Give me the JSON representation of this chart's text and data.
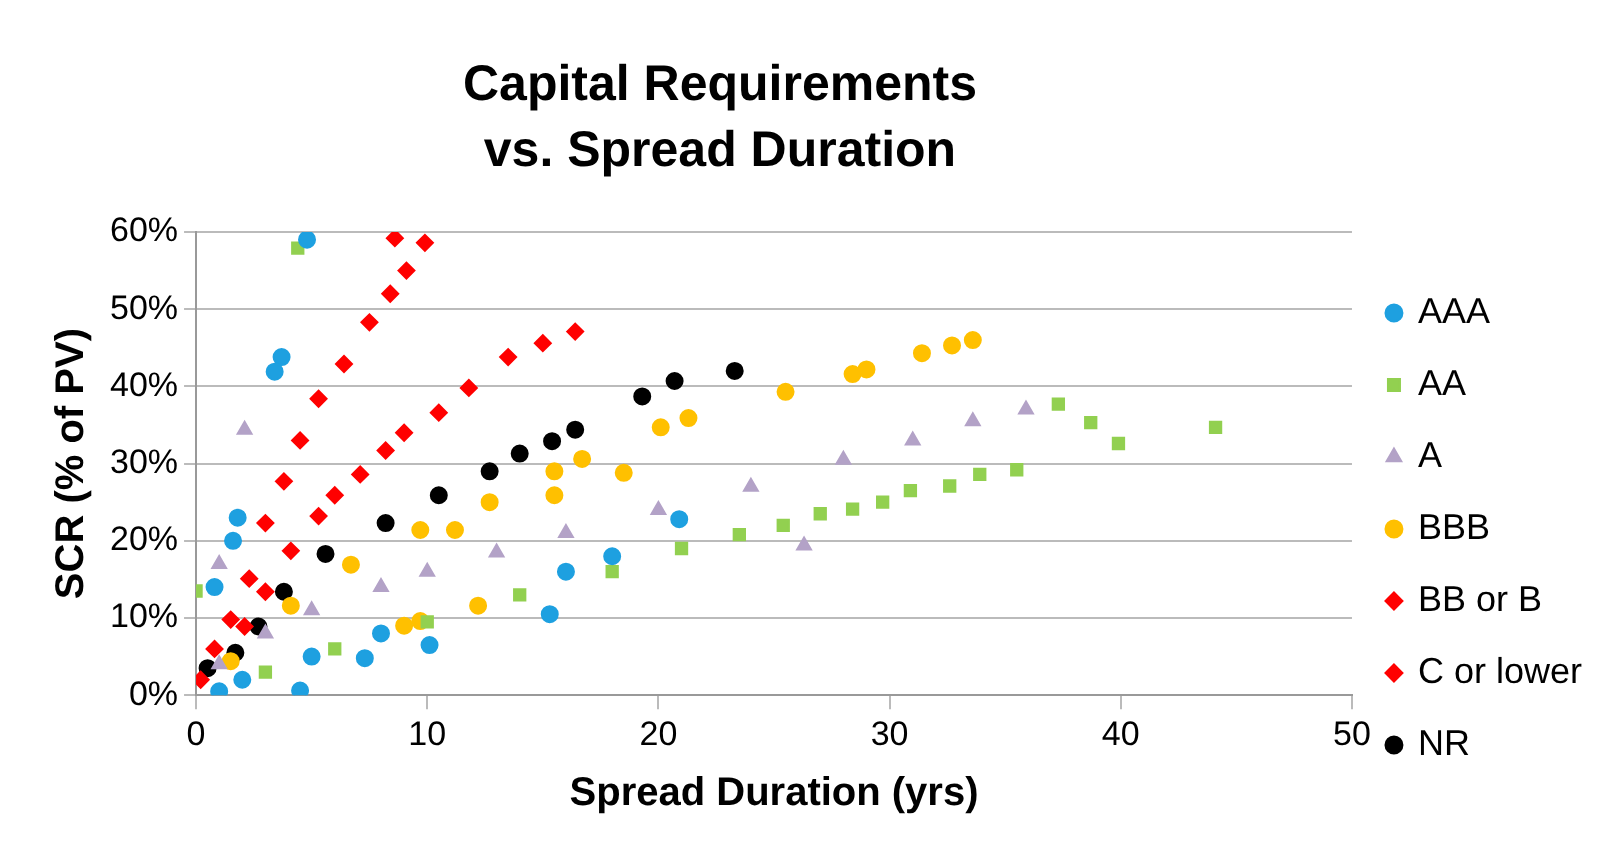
{
  "chart_data": {
    "type": "scatter",
    "title": "Capital Requirements vs. Spread Duration",
    "xlabel": "Spread Duration (yrs)",
    "ylabel": "SCR (% of PV)",
    "xlim": [
      0,
      50
    ],
    "xticks": [
      0,
      10,
      20,
      30,
      40,
      50
    ],
    "ylim": [
      0,
      60
    ],
    "yticks": [
      {
        "value": 0,
        "label": "0%"
      },
      {
        "value": 10,
        "label": "10%"
      },
      {
        "value": 20,
        "label": "20%"
      },
      {
        "value": 30,
        "label": "30%"
      },
      {
        "value": 40,
        "label": "40%"
      },
      {
        "value": 50,
        "label": "50%"
      },
      {
        "value": 60,
        "label": "60%"
      }
    ],
    "grid": "y",
    "legend": "right",
    "series": [
      {
        "name": "AAA",
        "color": "#1ea0e0",
        "marker": "circle",
        "x": [
          4.8,
          3.7,
          3.4,
          1.8,
          1.6,
          15.3,
          10.1,
          7.3,
          4.5,
          0.8,
          1,
          2,
          5,
          8,
          16,
          18,
          20.9
        ],
        "values": [
          59,
          43.8,
          41.9,
          23,
          20,
          10.5,
          6.5,
          4.8,
          0.6,
          14,
          0.5,
          2,
          5,
          8,
          16,
          18,
          22.8
        ]
      },
      {
        "name": "AA",
        "color": "#92d050",
        "marker": "square",
        "x": [
          4.4,
          0,
          37.3,
          38.7,
          39.9,
          44.1,
          35.5,
          33.9,
          32.6,
          30.9,
          29.7,
          28.4,
          27,
          25.4,
          23.5,
          3,
          6,
          10,
          14,
          18,
          21
        ],
        "values": [
          57.9,
          13.5,
          37.7,
          35.3,
          32.6,
          34.7,
          29.2,
          28.6,
          27.1,
          26.5,
          25,
          24.1,
          23.5,
          22,
          20.8,
          3,
          6,
          9.5,
          13,
          16,
          19
        ]
      },
      {
        "name": "A",
        "color": "#b3a2c7",
        "marker": "triangle",
        "x": [
          2.1,
          1,
          3,
          5,
          8,
          10,
          13,
          16,
          20,
          24,
          28,
          31,
          33.6,
          35.9,
          26.3,
          1
        ],
        "values": [
          34.4,
          4,
          8,
          11,
          14,
          16,
          18.5,
          21,
          24,
          27,
          30.5,
          33,
          35.5,
          37,
          19.4,
          17
        ]
      },
      {
        "name": "BBB",
        "color": "#ffc000",
        "marker": "circle",
        "x": [
          33.6,
          32.7,
          31.4,
          29,
          28.4,
          25.5,
          21.3,
          20.1,
          18.5,
          16.7,
          15.5,
          12.7,
          9.7,
          6.7,
          4.1,
          1.5,
          15.5,
          11.2,
          12.2,
          9.7,
          9
        ],
        "values": [
          46,
          45.3,
          44.3,
          42.2,
          41.6,
          39.3,
          35.9,
          34.7,
          28.8,
          30.6,
          29,
          25,
          21.4,
          16.9,
          11.6,
          4.4,
          25.9,
          21.4,
          11.6,
          9.6,
          9
        ]
      },
      {
        "name": "BB or B",
        "color": "#ff0000",
        "marker": "diamond",
        "x": [
          16.4,
          15,
          13.5,
          11.8,
          10.5,
          9,
          8.2,
          7.1,
          6,
          5.3,
          4.1,
          3,
          2.1
        ],
        "values": [
          47.1,
          45.6,
          43.8,
          39.8,
          36.6,
          34,
          31.7,
          28.6,
          25.9,
          23.2,
          18.7,
          13.4,
          8.9
        ]
      },
      {
        "name": "C or lower",
        "color": "#ff0000",
        "marker": "diamond",
        "x": [
          9.9,
          8.6,
          9.1,
          8.4,
          7.5,
          6.4,
          5.3,
          4.5,
          3.8,
          3,
          2.3,
          1.5,
          0.8,
          0.2
        ],
        "values": [
          58.6,
          59.2,
          55,
          52,
          48.3,
          42.9,
          38.4,
          33,
          27.7,
          22.3,
          15.1,
          9.8,
          6,
          2
        ]
      },
      {
        "name": "NR",
        "color": "#000000",
        "marker": "circle",
        "x": [
          20.7,
          19.3,
          23.3,
          16.4,
          15.4,
          14,
          12.7,
          10.5,
          8.2,
          5.6,
          3.8,
          2.7,
          1.7,
          0.5
        ],
        "values": [
          40.7,
          38.7,
          42,
          34.4,
          32.9,
          31.3,
          29,
          25.9,
          22.3,
          18.3,
          13.4,
          8.9,
          5.5,
          3.5
        ]
      }
    ]
  }
}
